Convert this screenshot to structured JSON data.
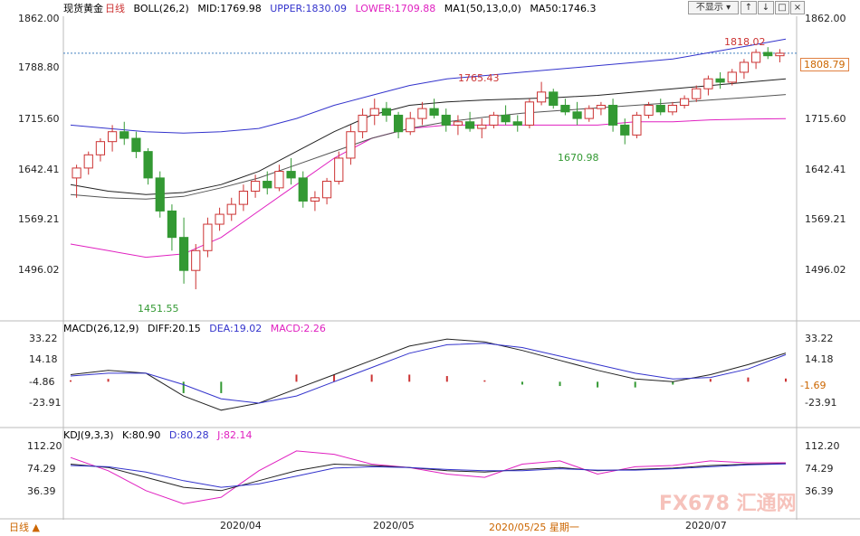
{
  "header": {
    "symbol": "现货黄金",
    "period": "日线",
    "boll_label": "BOLL(26,2)",
    "mid": "MID:1769.98",
    "upper": "UPPER:1830.09",
    "lower": "LOWER:1709.88",
    "ma_label": "MA1(50,13,0,0)",
    "ma50": "MA50:1746.3",
    "display_button": "不显示"
  },
  "macd_header": {
    "label": "MACD(26,12,9)",
    "diff": "DIFF:20.15",
    "dea": "DEA:19.02",
    "macd": "MACD:2.26"
  },
  "kdj_header": {
    "label": "KDJ(9,3,3)",
    "k": "K:80.90",
    "d": "D:80.28",
    "j": "J:82.14"
  },
  "bottom": {
    "period_button": "日线",
    "date_tooltip": "2020/05/25 星期一"
  },
  "watermark": "FX678 汇通网",
  "price_axis": [
    "1862.00",
    "1788.80",
    "1715.60",
    "1642.41",
    "1569.21",
    "1496.02"
  ],
  "current_price": "1808.79",
  "macd_axis": [
    "33.22",
    "14.18",
    "-4.86",
    "-23.91"
  ],
  "macd_current": "-1.69",
  "kdj_axis": [
    "112.20",
    "74.29",
    "36.39"
  ],
  "annotations": {
    "high_1": "1818.02",
    "high_2": "1765.43",
    "low_1": "1670.98",
    "low_2": "1451.55"
  },
  "colors": {
    "up": "#cc3333",
    "down": "#339933",
    "upper_band": "#3333cc",
    "lower_band": "#e020c0",
    "mid": "#222222",
    "ma50": "#222222"
  },
  "chart_data": {
    "type": "candlestick",
    "title": "现货黄金 日线",
    "x_ticks": [
      "2020/04",
      "2020/05",
      "2020/07"
    ],
    "ylim": [
      1451.55,
      1862.0
    ],
    "candles": [
      [
        1620,
        1640,
        1590,
        1635
      ],
      [
        1635,
        1660,
        1625,
        1655
      ],
      [
        1655,
        1680,
        1645,
        1675
      ],
      [
        1675,
        1700,
        1660,
        1690
      ],
      [
        1690,
        1705,
        1670,
        1680
      ],
      [
        1680,
        1690,
        1650,
        1660
      ],
      [
        1660,
        1665,
        1610,
        1620
      ],
      [
        1620,
        1630,
        1560,
        1570
      ],
      [
        1570,
        1580,
        1510,
        1530
      ],
      [
        1530,
        1560,
        1460,
        1480
      ],
      [
        1480,
        1520,
        1451.55,
        1510
      ],
      [
        1510,
        1560,
        1500,
        1550
      ],
      [
        1550,
        1575,
        1540,
        1565
      ],
      [
        1565,
        1590,
        1555,
        1580
      ],
      [
        1580,
        1610,
        1570,
        1600
      ],
      [
        1600,
        1625,
        1590,
        1615
      ],
      [
        1615,
        1630,
        1595,
        1605
      ],
      [
        1605,
        1640,
        1600,
        1630
      ],
      [
        1630,
        1650,
        1610,
        1620
      ],
      [
        1620,
        1630,
        1575,
        1585
      ],
      [
        1585,
        1600,
        1570,
        1590
      ],
      [
        1590,
        1620,
        1580,
        1615
      ],
      [
        1615,
        1660,
        1610,
        1650
      ],
      [
        1650,
        1700,
        1640,
        1690
      ],
      [
        1690,
        1725,
        1680,
        1715
      ],
      [
        1715,
        1740,
        1700,
        1725
      ],
      [
        1725,
        1735,
        1705,
        1715
      ],
      [
        1715,
        1720,
        1680,
        1690
      ],
      [
        1690,
        1720,
        1685,
        1710
      ],
      [
        1710,
        1735,
        1700,
        1725
      ],
      [
        1725,
        1740,
        1710,
        1715
      ],
      [
        1715,
        1725,
        1690,
        1700
      ],
      [
        1700,
        1715,
        1685,
        1705
      ],
      [
        1705,
        1720,
        1690,
        1695
      ],
      [
        1695,
        1710,
        1680,
        1700
      ],
      [
        1700,
        1720,
        1695,
        1715
      ],
      [
        1715,
        1730,
        1700,
        1705
      ],
      [
        1705,
        1715,
        1690,
        1700
      ],
      [
        1700,
        1740,
        1695,
        1735
      ],
      [
        1735,
        1765.43,
        1730,
        1750
      ],
      [
        1750,
        1755,
        1725,
        1730
      ],
      [
        1730,
        1740,
        1715,
        1720
      ],
      [
        1720,
        1735,
        1700,
        1710
      ],
      [
        1710,
        1730,
        1705,
        1725
      ],
      [
        1725,
        1735,
        1715,
        1730
      ],
      [
        1730,
        1740,
        1690,
        1700
      ],
      [
        1700,
        1710,
        1670.98,
        1685
      ],
      [
        1685,
        1720,
        1680,
        1715
      ],
      [
        1715,
        1735,
        1710,
        1730
      ],
      [
        1730,
        1740,
        1715,
        1720
      ],
      [
        1720,
        1735,
        1715,
        1730
      ],
      [
        1730,
        1745,
        1725,
        1740
      ],
      [
        1740,
        1760,
        1735,
        1755
      ],
      [
        1755,
        1775,
        1745,
        1770
      ],
      [
        1770,
        1780,
        1755,
        1765
      ],
      [
        1765,
        1785,
        1760,
        1780
      ],
      [
        1780,
        1800,
        1770,
        1795
      ],
      [
        1795,
        1815,
        1785,
        1810
      ],
      [
        1810,
        1818.02,
        1800,
        1805
      ],
      [
        1805,
        1815,
        1795,
        1808.79
      ]
    ],
    "bands": {
      "upper": [
        1700,
        1695,
        1690,
        1688,
        1690,
        1695,
        1710,
        1730,
        1745,
        1760,
        1770,
        1775,
        1780,
        1785,
        1790,
        1795,
        1800,
        1810,
        1820,
        1830.09
      ],
      "mid": [
        1610,
        1600,
        1595,
        1598,
        1610,
        1630,
        1660,
        1690,
        1715,
        1730,
        1735,
        1738,
        1740,
        1742,
        1745,
        1750,
        1755,
        1760,
        1765,
        1769.98
      ],
      "lower": [
        1520,
        1510,
        1500,
        1505,
        1530,
        1570,
        1610,
        1650,
        1680,
        1695,
        1700,
        1700,
        1700,
        1700,
        1700,
        1705,
        1705,
        1708,
        1709,
        1709.88
      ]
    },
    "ma50": [
      1595,
      1590,
      1588,
      1592,
      1605,
      1620,
      1640,
      1660,
      1680,
      1695,
      1705,
      1712,
      1718,
      1722,
      1726,
      1730,
      1734,
      1738,
      1742,
      1746.3
    ],
    "macd": {
      "diff": [
        5,
        8,
        6,
        -10,
        -20,
        -15,
        -5,
        5,
        15,
        25,
        30,
        28,
        22,
        15,
        8,
        2,
        0,
        5,
        12,
        20.15
      ],
      "dea": [
        4,
        6,
        6,
        -2,
        -12,
        -15,
        -10,
        0,
        10,
        20,
        26,
        27,
        24,
        18,
        12,
        6,
        2,
        3,
        9,
        19.02
      ],
      "hist": [
        1,
        2,
        0,
        -8,
        -8,
        0,
        5,
        5,
        5,
        5,
        4,
        1,
        -2,
        -3,
        -4,
        -4,
        -2,
        2,
        3,
        2.26
      ],
      "ylim": [
        -23.91,
        33.22
      ]
    },
    "kdj": {
      "k": [
        80,
        75,
        60,
        45,
        40,
        55,
        70,
        80,
        78,
        75,
        70,
        68,
        72,
        75,
        70,
        72,
        74,
        78,
        80,
        80.9
      ],
      "d": [
        78,
        76,
        68,
        55,
        45,
        50,
        62,
        74,
        76,
        75,
        72,
        70,
        70,
        73,
        71,
        71,
        73,
        76,
        79,
        80.28
      ],
      "j": [
        90,
        70,
        40,
        20,
        30,
        70,
        100,
        95,
        80,
        75,
        65,
        60,
        80,
        85,
        65,
        76,
        78,
        85,
        82,
        82.14
      ],
      "ylim": [
        36.39,
        112.2
      ]
    }
  }
}
